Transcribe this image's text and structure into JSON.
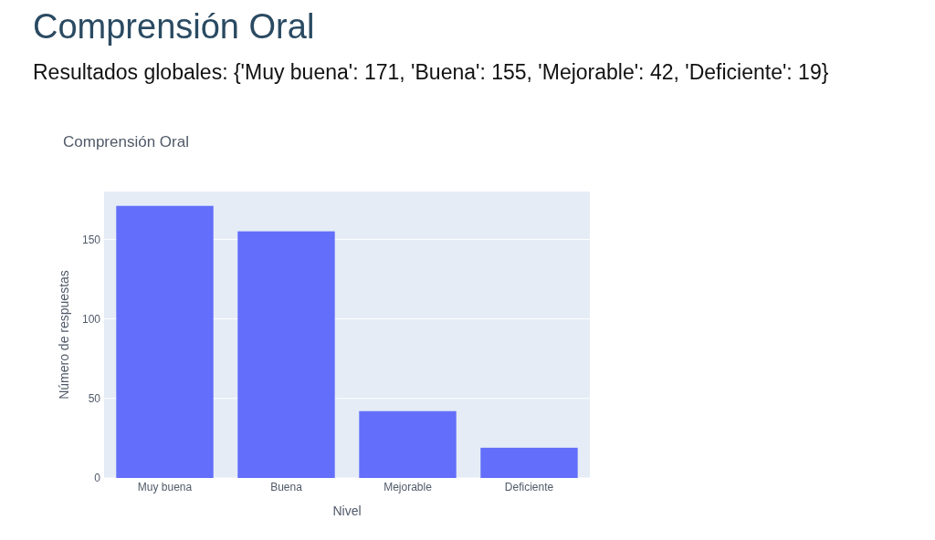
{
  "chart_data": {
    "type": "bar",
    "title": "Comprensión Oral",
    "subtitle": "Resultados globales: {'Muy buena': 171, 'Buena': 155, 'Mejorable': 42, 'Deficiente': 19}",
    "annotations": [
      "Comprensión Oral"
    ],
    "xlabel": "Nivel",
    "ylabel": "Número de respuestas",
    "categories": [
      "Muy buena",
      "Buena",
      "Mejorable",
      "Deficiente"
    ],
    "values": [
      171,
      155,
      42,
      19
    ],
    "color": "#636efa",
    "ylim": [
      0,
      180
    ],
    "yticks": [
      0,
      50,
      100,
      150
    ],
    "grid": "y"
  }
}
